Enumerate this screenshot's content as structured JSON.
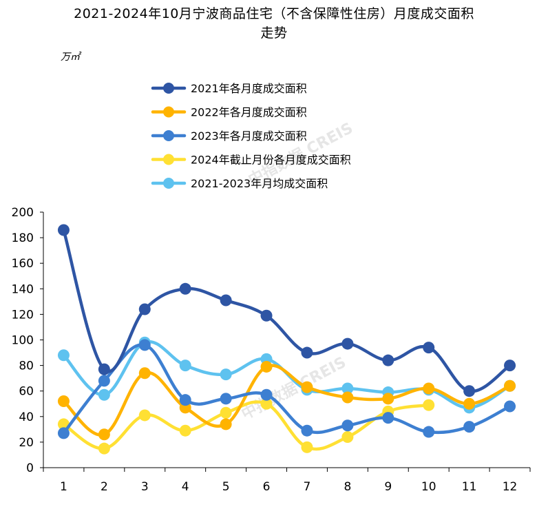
{
  "title_line1": "2021-2024年10月宁波商品住宅（不含保障性住房）月度成交面积",
  "title_line2": "走势",
  "unit": "万㎡",
  "watermark": "中指数据 CREIS",
  "chart_data": {
    "type": "line",
    "title": "2021-2024年10月宁波商品住宅（不含保障性住房）月度成交面积走势",
    "ylabel": "万㎡",
    "xlabel": "",
    "categories": [
      "1",
      "2",
      "3",
      "4",
      "5",
      "6",
      "7",
      "8",
      "9",
      "10",
      "11",
      "12"
    ],
    "ylim": [
      0,
      200
    ],
    "yticks": [
      "0",
      "20",
      "40",
      "60",
      "80",
      "100",
      "120",
      "140",
      "160",
      "180",
      "200"
    ],
    "grid": false,
    "legend_position": "top",
    "series": [
      {
        "name": "2021年各月度成交面积",
        "color": "#2e55a4",
        "values": [
          186,
          77,
          124,
          140,
          131,
          119,
          90,
          97,
          84,
          94,
          60,
          80
        ]
      },
      {
        "name": "2022年各月度成交面积",
        "color": "#ffb300",
        "values": [
          52,
          26,
          74,
          47,
          34,
          79,
          63,
          55,
          54,
          62,
          50,
          64
        ]
      },
      {
        "name": "2023年各月度成交面积",
        "color": "#3d7fd1",
        "values": [
          27,
          68,
          96,
          53,
          54,
          57,
          29,
          33,
          39,
          28,
          32,
          48
        ]
      },
      {
        "name": "2024年截止月份各月度成交面积",
        "color": "#ffe033",
        "values": [
          34,
          15,
          41,
          29,
          43,
          50,
          16,
          24,
          44,
          49,
          null,
          null
        ]
      },
      {
        "name": "2021-2023年月均成交面积",
        "color": "#5ec2ef",
        "values": [
          88,
          57,
          98,
          80,
          73,
          85,
          61,
          62,
          59,
          61,
          47,
          64
        ]
      }
    ]
  }
}
